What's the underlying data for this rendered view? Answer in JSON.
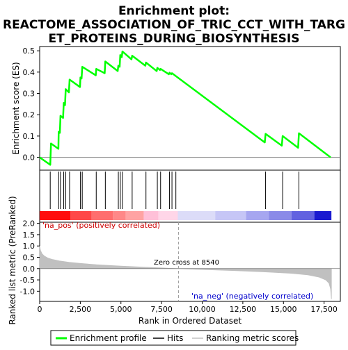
{
  "chart_data": {
    "type": "line",
    "title_lines": [
      "Enrichment plot:",
      "REACTOME_ASSOCIATION_OF_TRIC_CCT_WITH_TARG",
      "ET_PROTEINS_DURING_BIOSYNTHESIS"
    ],
    "top_panel": {
      "ylabel": "Enrichment score (ES)",
      "ylim": [
        -0.06,
        0.52
      ],
      "yticks": [
        0.0,
        0.1,
        0.2,
        0.3,
        0.4,
        0.5
      ],
      "ytick_labels": [
        "0.0",
        "0.1",
        "0.2",
        "0.3",
        "0.4",
        "0.5"
      ],
      "grid": false,
      "series": [
        {
          "name": "Enrichment profile",
          "color": "#00ff00",
          "x": [
            0,
            650,
            700,
            1150,
            1170,
            1240,
            1280,
            1440,
            1480,
            1560,
            1600,
            1800,
            1840,
            2480,
            2510,
            2580,
            2620,
            3450,
            3480,
            4000,
            4040,
            4800,
            4840,
            4920,
            4960,
            5050,
            5090,
            5650,
            5690,
            6500,
            6540,
            7200,
            7240,
            7400,
            7440,
            7950,
            7990,
            8100,
            8140,
            13850,
            13900,
            14900,
            14950,
            15900,
            15950,
            17900
          ],
          "y": [
            0.0,
            -0.035,
            0.065,
            0.04,
            0.12,
            0.115,
            0.195,
            0.185,
            0.255,
            0.245,
            0.32,
            0.305,
            0.365,
            0.33,
            0.375,
            0.37,
            0.425,
            0.385,
            0.415,
            0.395,
            0.45,
            0.405,
            0.43,
            0.425,
            0.48,
            0.47,
            0.497,
            0.46,
            0.477,
            0.43,
            0.445,
            0.405,
            0.42,
            0.41,
            0.415,
            0.39,
            0.397,
            0.39,
            0.395,
            0.07,
            0.11,
            0.055,
            0.1,
            0.045,
            0.113,
            0.0
          ]
        }
      ]
    },
    "hits": {
      "name": "Hits",
      "positions": [
        650,
        1170,
        1280,
        1480,
        1600,
        1840,
        2510,
        2620,
        3480,
        4040,
        4840,
        4960,
        5090,
        5690,
        6540,
        7240,
        7440,
        7990,
        8140,
        8380,
        13900,
        14950,
        15950
      ]
    },
    "bottom_panel": {
      "ylabel": "Ranked list metric (PreRanked)",
      "xlabel": "Rank in Ordered Dataset",
      "ylim": [
        -1.45,
        2.05
      ],
      "yticks": [
        -1.0,
        -0.5,
        0.0,
        0.5,
        1.0,
        1.5,
        2.0
      ],
      "ytick_labels": [
        "-1.0",
        "-0.5",
        "0.0",
        "0.5",
        "1.0",
        "1.5",
        "2.0"
      ],
      "xlim": [
        0,
        18500
      ],
      "xticks": [
        0,
        2500,
        5000,
        7500,
        10000,
        12500,
        15000,
        17500
      ],
      "xtick_labels": [
        "0",
        "2,500",
        "5,000",
        "7,500",
        "10,000",
        "12,500",
        "15,000",
        "17,500"
      ],
      "metric_series": {
        "name": "Ranking metric scores",
        "color": "#c0c0c0",
        "x": [
          0,
          50,
          150,
          300,
          500,
          800,
          1200,
          1800,
          2500,
          3500,
          5000,
          6500,
          8540,
          10000,
          12000,
          14000,
          15500,
          16500,
          17200,
          17600,
          17800,
          17900,
          17950
        ],
        "y": [
          1.0,
          0.8,
          0.65,
          0.55,
          0.47,
          0.4,
          0.34,
          0.28,
          0.23,
          0.17,
          0.11,
          0.06,
          0.0,
          -0.04,
          -0.09,
          -0.15,
          -0.21,
          -0.28,
          -0.38,
          -0.5,
          -0.65,
          -0.9,
          -1.35
        ]
      },
      "zero_cross_label": "Zero cross at 8540",
      "zero_cross": 8540,
      "pos_label": "'na_pos' (positively correlated)",
      "neg_label": "'na_neg' (negatively correlated)",
      "pos_label_color": "#cc0000",
      "neg_label_color": "#0000cc"
    },
    "color_bar": {
      "segments": [
        {
          "start": 0,
          "end": 1900,
          "color": "#ff0d0d"
        },
        {
          "start": 1900,
          "end": 3200,
          "color": "#ff4848"
        },
        {
          "start": 3200,
          "end": 4500,
          "color": "#ff6e6e"
        },
        {
          "start": 4500,
          "end": 5300,
          "color": "#ff8888"
        },
        {
          "start": 5300,
          "end": 6400,
          "color": "#ffa3a3"
        },
        {
          "start": 6400,
          "end": 7300,
          "color": "#ffc0d8"
        },
        {
          "start": 7300,
          "end": 8500,
          "color": "#ffd6e8"
        },
        {
          "start": 8500,
          "end": 10800,
          "color": "#dcdcf8"
        },
        {
          "start": 10800,
          "end": 12700,
          "color": "#c6c6f6"
        },
        {
          "start": 12700,
          "end": 14100,
          "color": "#a6a6f0"
        },
        {
          "start": 14100,
          "end": 15500,
          "color": "#8a8ae8"
        },
        {
          "start": 15500,
          "end": 16900,
          "color": "#6262e0"
        },
        {
          "start": 16900,
          "end": 17950,
          "color": "#1a1ad0"
        }
      ]
    },
    "legend": {
      "placement": "bottom",
      "items": [
        {
          "label": "Enrichment profile",
          "color": "#00ff00",
          "kind": "line"
        },
        {
          "label": "Hits",
          "color": "#000000",
          "kind": "line"
        },
        {
          "label": "Ranking metric scores",
          "color": "#c0c0c0",
          "kind": "line"
        }
      ]
    }
  }
}
